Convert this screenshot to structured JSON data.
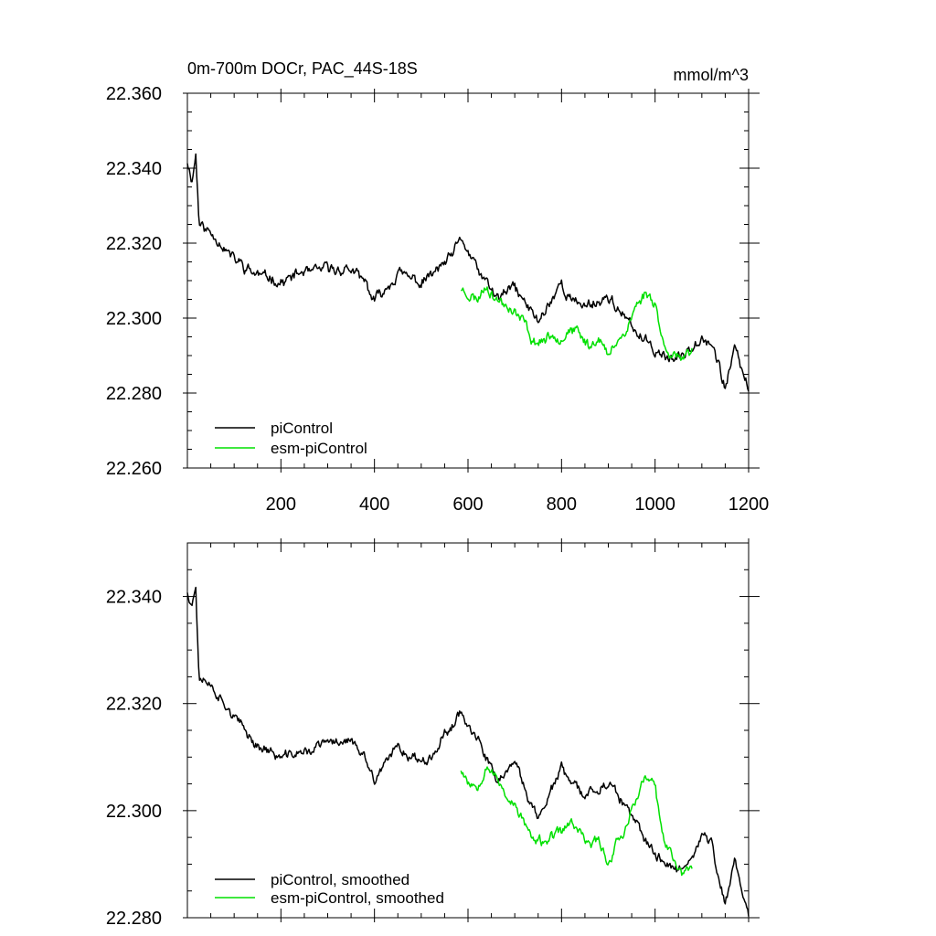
{
  "chart_data": [
    {
      "type": "line",
      "title": "0m-700m DOCr, PAC_44S-18S",
      "units": "mmol/m^3",
      "xlim": [
        0,
        1200
      ],
      "ylim": [
        22.26,
        22.36
      ],
      "x_ticks": [
        200,
        400,
        600,
        800,
        1000,
        1200
      ],
      "x_minor_step": 50,
      "y_ticks": [
        22.26,
        22.28,
        22.3,
        22.32,
        22.34,
        22.36
      ],
      "y_tick_labels": [
        "22.260",
        "22.280",
        "22.300",
        "22.320",
        "22.340",
        "22.360"
      ],
      "y_minor_step": 0.005,
      "legend_position": "bottom-left",
      "series": [
        {
          "name": "piControl",
          "color": "#000000",
          "noise": 0.0022,
          "seed": 11,
          "x": [
            0,
            10,
            18,
            25,
            40,
            60,
            100,
            150,
            200,
            250,
            300,
            350,
            380,
            400,
            450,
            500,
            560,
            585,
            600,
            640,
            660,
            700,
            750,
            800,
            820,
            850,
            900,
            950,
            1000,
            1050,
            1100,
            1120,
            1150,
            1170,
            1200
          ],
          "y": [
            22.342,
            22.337,
            22.344,
            22.326,
            22.324,
            22.322,
            22.316,
            22.312,
            22.31,
            22.312,
            22.313,
            22.313,
            22.309,
            22.304,
            22.313,
            22.309,
            22.315,
            22.32,
            22.317,
            22.309,
            22.305,
            22.308,
            22.299,
            22.309,
            22.305,
            22.303,
            22.306,
            22.297,
            22.292,
            22.289,
            22.295,
            22.294,
            22.281,
            22.292,
            22.281
          ]
        },
        {
          "name": "esm-piControl",
          "color": "#00e000",
          "noise": 0.0022,
          "seed": 23,
          "x": [
            585,
            600,
            620,
            640,
            660,
            680,
            700,
            720,
            740,
            760,
            800,
            820,
            840,
            860,
            880,
            900,
            920,
            940,
            960,
            980,
            1000,
            1020,
            1040,
            1060,
            1080
          ],
          "y": [
            22.308,
            22.306,
            22.305,
            22.309,
            22.305,
            22.303,
            22.301,
            22.298,
            22.293,
            22.294,
            22.295,
            22.298,
            22.296,
            22.293,
            22.295,
            22.289,
            22.295,
            22.297,
            22.303,
            22.307,
            22.305,
            22.292,
            22.291,
            22.288,
            22.291
          ]
        }
      ]
    },
    {
      "type": "line",
      "xlim": [
        0,
        1200
      ],
      "ylim": [
        22.28,
        22.35
      ],
      "x_ticks": [
        200,
        400,
        600,
        800,
        1000,
        1200
      ],
      "x_minor_step": 50,
      "y_ticks": [
        22.28,
        22.3,
        22.32,
        22.34
      ],
      "y_tick_labels": [
        "22.280",
        "22.300",
        "22.320",
        "22.340"
      ],
      "y_minor_step": 0.005,
      "legend_position": "bottom-left",
      "series": [
        {
          "name": "piControl, smoothed",
          "color": "#000000",
          "noise": 0.0014,
          "seed": 37,
          "x": [
            0,
            10,
            18,
            25,
            40,
            60,
            100,
            150,
            200,
            250,
            300,
            350,
            380,
            400,
            450,
            500,
            560,
            585,
            600,
            640,
            660,
            700,
            750,
            800,
            820,
            850,
            900,
            950,
            1000,
            1050,
            1100,
            1120,
            1150,
            1170,
            1200
          ],
          "y": [
            22.341,
            22.339,
            22.342,
            22.325,
            22.324,
            22.322,
            22.317,
            22.312,
            22.31,
            22.311,
            22.313,
            22.313,
            22.309,
            22.305,
            22.312,
            22.309,
            22.315,
            22.319,
            22.316,
            22.309,
            22.305,
            22.308,
            22.299,
            22.308,
            22.305,
            22.303,
            22.305,
            22.298,
            22.292,
            22.289,
            22.295,
            22.294,
            22.282,
            22.291,
            22.281
          ]
        },
        {
          "name": "esm-piControl, smoothed",
          "color": "#00e000",
          "noise": 0.0014,
          "seed": 53,
          "x": [
            585,
            600,
            620,
            640,
            660,
            680,
            700,
            720,
            740,
            760,
            800,
            820,
            840,
            860,
            880,
            900,
            920,
            940,
            960,
            980,
            1000,
            1020,
            1040,
            1060,
            1080
          ],
          "y": [
            22.308,
            22.306,
            22.305,
            22.309,
            22.306,
            22.303,
            22.301,
            22.298,
            22.294,
            22.294,
            22.296,
            22.298,
            22.296,
            22.294,
            22.295,
            22.29,
            22.295,
            22.297,
            22.302,
            22.306,
            22.304,
            22.293,
            22.291,
            22.288,
            22.29
          ]
        }
      ]
    }
  ]
}
